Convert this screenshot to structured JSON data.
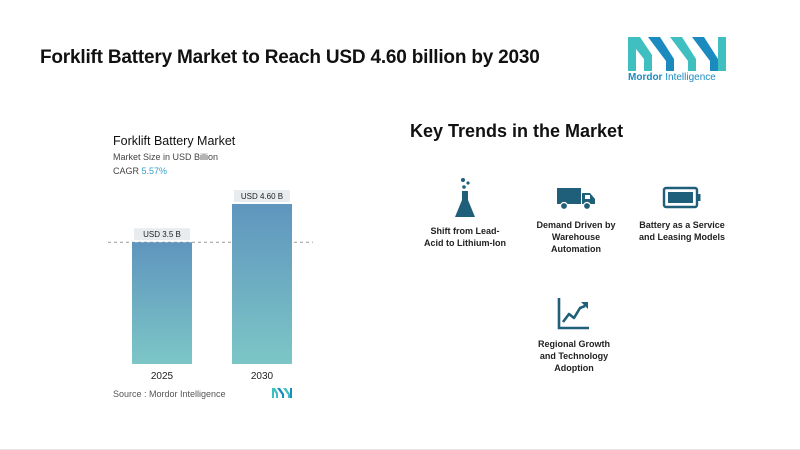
{
  "headline": "Forklift Battery Market to Reach USD 4.60 billion by 2030",
  "brand": {
    "name_bold": "Mordor",
    "name_rest": " Intelligence",
    "colors": {
      "primary": "#1b8bbf",
      "secondary": "#3fbfbf"
    }
  },
  "chart_data": {
    "type": "bar",
    "title": "Forklift Battery Market",
    "subtitle": "Market Size in USD Billion",
    "cagr_label": "CAGR",
    "cagr_value": "5.57%",
    "categories": [
      "2025",
      "2030"
    ],
    "values": [
      3.5,
      4.6
    ],
    "data_labels": [
      "USD 3.5 B",
      "USD 4.60 B"
    ],
    "ylim": [
      0,
      5
    ],
    "reference_line": 3.5,
    "bar_gradient": {
      "top": "#5f95be",
      "bottom": "#7cc6c6"
    },
    "grid": false
  },
  "source": "Source :  Mordor Intelligence",
  "trends": {
    "title": "Key Trends in the Market",
    "items": [
      {
        "icon": "flask-icon",
        "label": "Shift from Lead-\nAcid to Lithium-Ion"
      },
      {
        "icon": "truck-icon",
        "label": "Demand Driven by\nWarehouse\nAutomation"
      },
      {
        "icon": "battery-icon",
        "label": "Battery as a Service\nand Leasing Models"
      },
      {
        "icon": "growth-chart-icon",
        "label": "Regional Growth\nand Technology\nAdoption"
      }
    ],
    "icon_color": "#1f5f7a"
  }
}
